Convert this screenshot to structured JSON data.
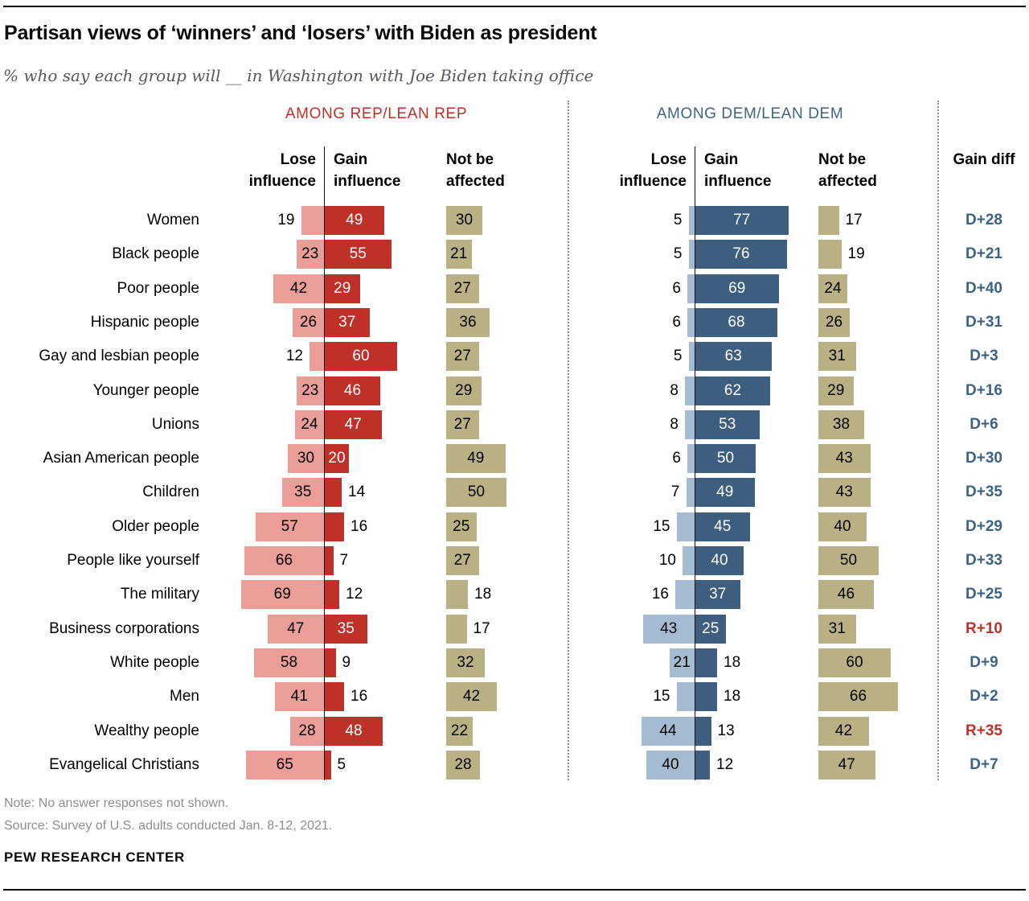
{
  "header": {
    "title": "Partisan views of ‘winners’ and ‘losers’ with Biden as president",
    "subtitle": "% who say each group will __ in Washington with Joe Biden taking office"
  },
  "panels": [
    {
      "id": "rep",
      "label": "AMONG REP/LEAN REP",
      "col_headers": [
        [
          "Lose",
          "influence"
        ],
        [
          "Gain",
          "influence"
        ],
        [
          "Not be",
          "affected"
        ]
      ]
    },
    {
      "id": "dem",
      "label": "AMONG DEM/LEAN DEM",
      "col_headers": [
        [
          "Lose",
          "influence"
        ],
        [
          "Gain",
          "influence"
        ],
        [
          "Not be",
          "affected"
        ]
      ]
    }
  ],
  "gain_diff_header": "Gain diff",
  "colors": {
    "rep_label": "#bf3028",
    "dem_label": "#3d6384",
    "rep_lose_bar": "#eb9d97",
    "rep_gain_bar": "#bf3128",
    "dem_lose_bar": "#a5bbd1",
    "dem_gain_bar": "#3d5e7e",
    "not_affected_bar": "#b9b083",
    "diff_dem_text": "#3d6384",
    "diff_rep_text": "#bf3128"
  },
  "chart_data": {
    "type": "bar",
    "title": "Partisan views of ‘winners’ and ‘losers’ with Biden as president",
    "subtitle": "% who say each group will __ in Washington with Joe Biden taking office",
    "value_unit": "percent",
    "axis_range_per_panel": [
      0,
      100
    ],
    "categories": [
      "Women",
      "Black people",
      "Poor people",
      "Hispanic people",
      "Gay and lesbian people",
      "Younger people",
      "Unions",
      "Asian American people",
      "Children",
      "Older people",
      "People like yourself",
      "The military",
      "Business corporations",
      "White people",
      "Men",
      "Wealthy people",
      "Evangelical Christians"
    ],
    "series": [
      {
        "name": "Rep/Lean Rep — Lose influence",
        "values": [
          19,
          23,
          42,
          26,
          12,
          23,
          24,
          30,
          35,
          57,
          66,
          69,
          47,
          58,
          41,
          28,
          65
        ]
      },
      {
        "name": "Rep/Lean Rep — Gain influence",
        "values": [
          49,
          55,
          29,
          37,
          60,
          46,
          47,
          20,
          14,
          16,
          7,
          12,
          35,
          9,
          16,
          48,
          5
        ]
      },
      {
        "name": "Rep/Lean Rep — Not be affected",
        "values": [
          30,
          21,
          27,
          36,
          27,
          29,
          27,
          49,
          50,
          25,
          27,
          18,
          17,
          32,
          42,
          22,
          28
        ]
      },
      {
        "name": "Dem/Lean Dem — Lose influence",
        "values": [
          5,
          5,
          6,
          6,
          5,
          8,
          8,
          6,
          7,
          15,
          10,
          16,
          43,
          21,
          15,
          44,
          40
        ]
      },
      {
        "name": "Dem/Lean Dem — Gain influence",
        "values": [
          77,
          76,
          69,
          68,
          63,
          62,
          53,
          50,
          49,
          45,
          40,
          37,
          25,
          18,
          18,
          13,
          12
        ]
      },
      {
        "name": "Dem/Lean Dem — Not be affected",
        "values": [
          17,
          19,
          24,
          26,
          31,
          29,
          38,
          43,
          43,
          40,
          50,
          46,
          31,
          60,
          66,
          42,
          47
        ]
      }
    ],
    "gain_diff": [
      "D+28",
      "D+21",
      "D+40",
      "D+31",
      "D+3",
      "D+16",
      "D+6",
      "D+30",
      "D+35",
      "D+29",
      "D+33",
      "D+25",
      "R+10",
      "D+9",
      "D+2",
      "R+35",
      "D+7"
    ]
  },
  "footer": {
    "note": "Note: No answer responses not shown.",
    "source": "Source: Survey of U.S. adults conducted Jan. 8-12, 2021.",
    "brand": "PEW RESEARCH CENTER"
  }
}
